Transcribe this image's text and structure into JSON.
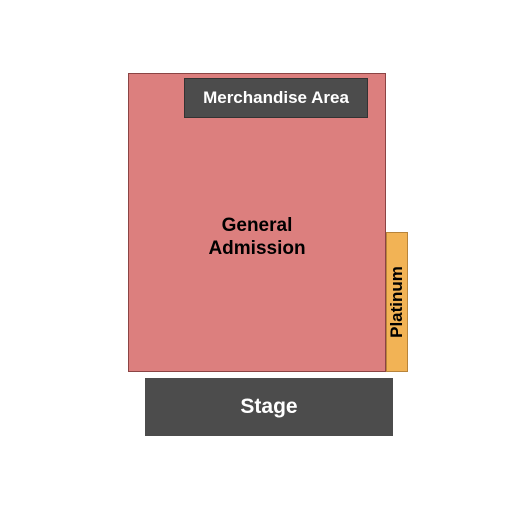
{
  "venue_map": {
    "type": "infographic",
    "background_color": "#ffffff",
    "areas": {
      "general_admission": {
        "label": "General\nAdmission",
        "fill_color": "#dc7f7e",
        "border_color": "#8b4444",
        "text_color": "#000000",
        "font_size": 19,
        "font_weight": "bold"
      },
      "merchandise": {
        "label": "Merchandise Area",
        "fill_color": "#4c4c4c",
        "border_color": "#333333",
        "text_color": "#ffffff",
        "font_size": 17,
        "font_weight": "bold"
      },
      "platinum": {
        "label": "Platinum",
        "fill_color": "#f2b355",
        "border_color": "#b8843a",
        "text_color": "#000000",
        "font_size": 17,
        "font_weight": "bold",
        "rotation": -90
      },
      "stage": {
        "label": "Stage",
        "fill_color": "#4c4c4c",
        "text_color": "#ffffff",
        "font_size": 21,
        "font_weight": "bold"
      }
    }
  }
}
